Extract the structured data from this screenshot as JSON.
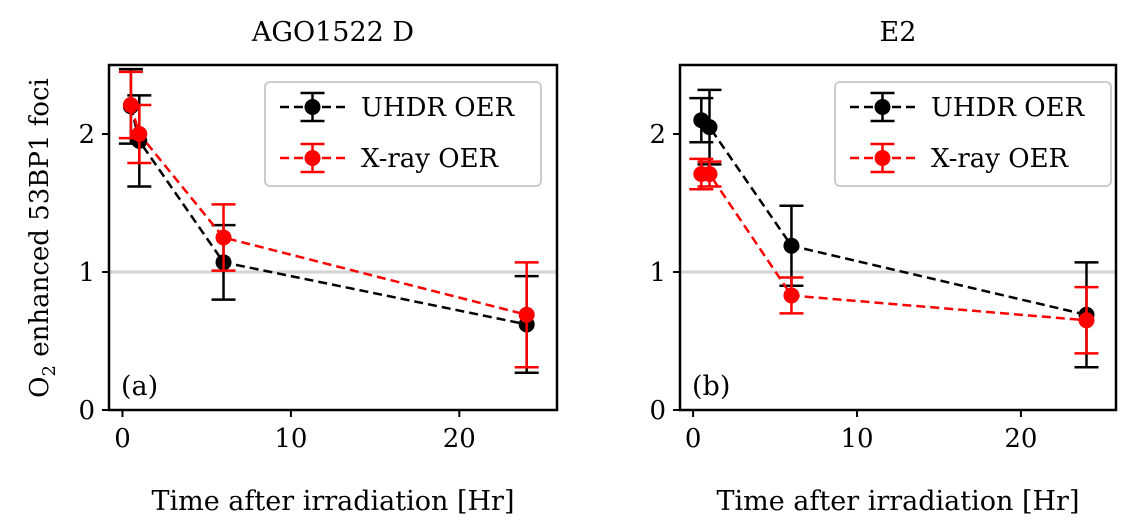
{
  "figure": {
    "ylabel_main": "O",
    "ylabel_sub": "2",
    "ylabel_rest": " enhanced 53BP1 foci"
  },
  "chart_data": [
    {
      "type": "line",
      "title": "AGO1522 D",
      "panel_label": "(a)",
      "xlabel": "Time after irradiation [Hr]",
      "ylabel": "O2 enhanced 53BP1 foci",
      "xlim": [
        -0.8,
        25.8
      ],
      "ylim": [
        0,
        2.5
      ],
      "xticks": [
        0,
        10,
        20
      ],
      "yticks": [
        0,
        1,
        2
      ],
      "reference_line": 1,
      "grid": false,
      "legend_position": "top-right",
      "series": [
        {
          "name": "UHDR OER",
          "color": "#000000",
          "x": [
            0.5,
            1,
            6,
            24
          ],
          "y": [
            2.2,
            1.95,
            1.07,
            0.62
          ],
          "yerr": [
            0.27,
            0.33,
            0.27,
            0.35
          ]
        },
        {
          "name": "X-ray OER",
          "color": "#ff0000",
          "x": [
            0.5,
            1,
            6,
            24
          ],
          "y": [
            2.21,
            2.0,
            1.25,
            0.69
          ],
          "yerr": [
            0.24,
            0.21,
            0.24,
            0.38
          ]
        }
      ]
    },
    {
      "type": "line",
      "title": "E2",
      "panel_label": "(b)",
      "xlabel": "Time after irradiation [Hr]",
      "ylabel": "",
      "xlim": [
        -0.8,
        25.8
      ],
      "ylim": [
        0,
        2.5
      ],
      "xticks": [
        0,
        10,
        20
      ],
      "yticks": [
        0,
        1,
        2
      ],
      "reference_line": 1,
      "grid": false,
      "legend_position": "top-right",
      "series": [
        {
          "name": "UHDR OER",
          "color": "#000000",
          "x": [
            0.5,
            1,
            6,
            24
          ],
          "y": [
            2.1,
            2.05,
            1.19,
            0.69
          ],
          "yerr": [
            0.16,
            0.27,
            0.29,
            0.38
          ]
        },
        {
          "name": "X-ray OER",
          "color": "#ff0000",
          "x": [
            0.5,
            1,
            6,
            24
          ],
          "y": [
            1.71,
            1.71,
            0.83,
            0.65
          ],
          "yerr": [
            0.11,
            0.09,
            0.13,
            0.24
          ]
        }
      ]
    }
  ]
}
